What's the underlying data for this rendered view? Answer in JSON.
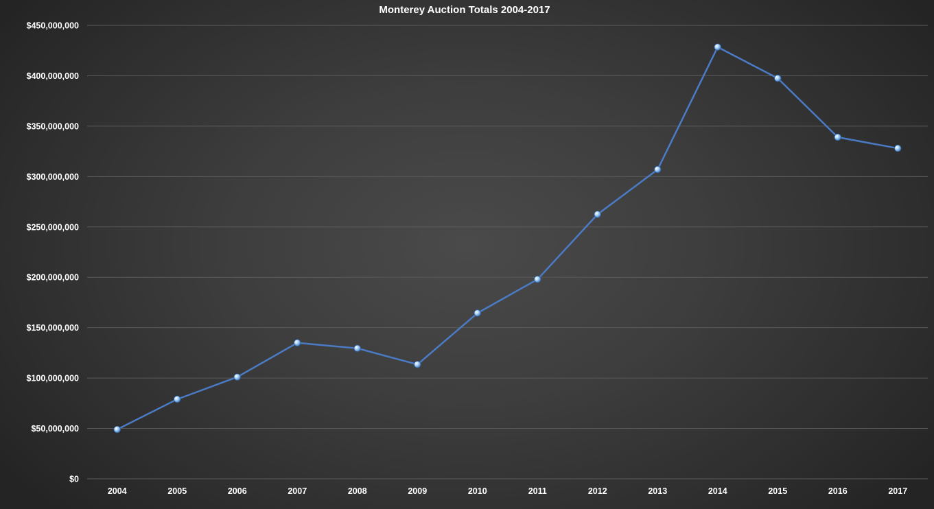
{
  "chart_data": {
    "type": "line",
    "title": "Monterey Auction Totals 2004-2017",
    "xlabel": "",
    "ylabel": "",
    "categories": [
      "2004",
      "2005",
      "2006",
      "2007",
      "2008",
      "2009",
      "2010",
      "2011",
      "2012",
      "2013",
      "2014",
      "2015",
      "2016",
      "2017"
    ],
    "series": [
      {
        "values": [
          49000000,
          79000000,
          101000000,
          135000000,
          129500000,
          113500000,
          164500000,
          198000000,
          262500000,
          307000000,
          428500000,
          397500000,
          339000000,
          328000000
        ]
      }
    ],
    "ylim": [
      0,
      450000000
    ],
    "yticks": [
      0,
      50000000,
      100000000,
      150000000,
      200000000,
      250000000,
      300000000,
      350000000,
      400000000,
      450000000
    ],
    "ytick_labels": [
      "$0",
      "$50,000,000",
      "$100,000,000",
      "$150,000,000",
      "$200,000,000",
      "$250,000,000",
      "$300,000,000",
      "$350,000,000",
      "$400,000,000",
      "$450,000,000"
    ],
    "grid": true,
    "legend": "none",
    "colors": {
      "background": "#3a3a3a",
      "gridline": "#5a5a5a",
      "line": "#4a7bc4",
      "marker": "#9cc8f0",
      "text": "#ffffff"
    }
  }
}
